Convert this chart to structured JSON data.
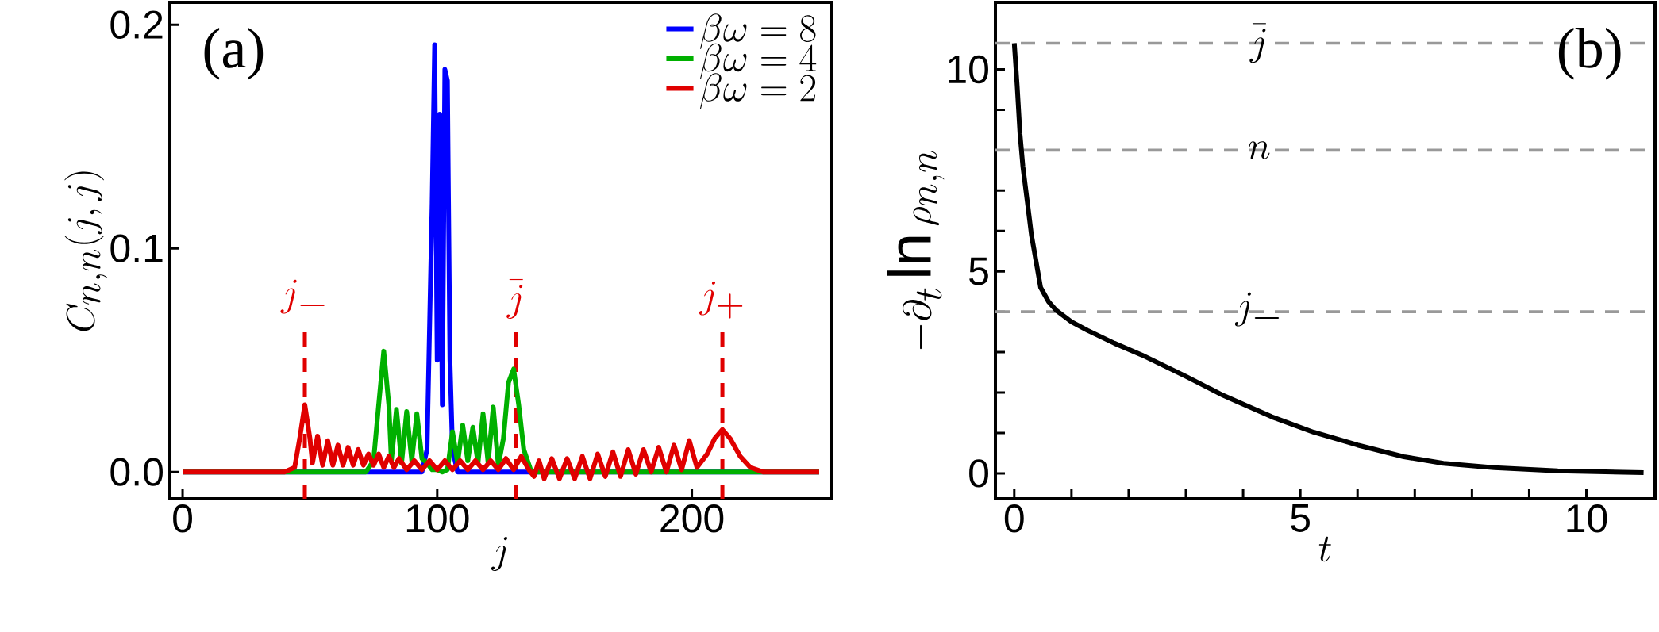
{
  "chart_data": [
    {
      "type": "line",
      "xlabel": "j",
      "ylabel": "C_{n,n}(j,j)",
      "xlim": [
        -5,
        255
      ],
      "ylim": [
        -0.012,
        0.21
      ],
      "xticks": [
        0,
        100,
        200
      ],
      "yticks": [
        {
          "value": 0,
          "label": "0.0"
        },
        {
          "value": 0.1,
          "label": "0.1"
        },
        {
          "value": 0.2,
          "label": "0.2"
        }
      ],
      "legend": "top right",
      "annotations": [
        "(a)"
      ],
      "ref_lines": [
        {
          "axis": "x",
          "value": 48,
          "label": "j_-",
          "color": "#e00000",
          "line_style": "dashed"
        },
        {
          "axis": "x",
          "value": 131,
          "label": "\\bar{j}",
          "color": "#e00000",
          "line_style": "dashed"
        },
        {
          "axis": "x",
          "value": 212,
          "label": "j_+",
          "color": "#e00000",
          "line_style": "dashed"
        }
      ],
      "series": [
        {
          "name": "\\beta\\omega = 8",
          "color": "#0000ff",
          "x": [
            0,
            94,
            96,
            98,
            99,
            100,
            101,
            102,
            103,
            104,
            105,
            106,
            108,
            250
          ],
          "values": [
            0,
            0,
            0.01,
            0.12,
            0.191,
            0.05,
            0.16,
            0.03,
            0.18,
            0.175,
            0.05,
            0.01,
            0,
            0
          ]
        },
        {
          "name": "\\beta\\omega = 4",
          "color": "#00b000",
          "x": [
            0,
            72,
            75,
            77,
            79,
            81,
            82,
            84,
            86,
            88,
            90,
            92,
            94,
            96,
            98,
            100,
            102,
            104,
            106,
            108,
            110,
            112,
            114,
            116,
            118,
            120,
            122,
            124,
            126,
            128,
            130,
            132,
            134,
            137,
            250
          ],
          "values": [
            0,
            0,
            0.005,
            0.03,
            0.054,
            0.03,
            0.005,
            0.028,
            0.004,
            0.027,
            0.005,
            0.026,
            0.006,
            0.004,
            0.001,
            0.001,
            0,
            0.001,
            0.018,
            0.004,
            0.021,
            0.005,
            0.02,
            0.004,
            0.026,
            0.004,
            0.029,
            0.003,
            0.015,
            0.04,
            0.046,
            0.03,
            0.01,
            0,
            0
          ]
        },
        {
          "name": "\\beta\\omega = 2",
          "color": "#e00000",
          "x": [
            0,
            40,
            44,
            46,
            48,
            50,
            51,
            53,
            55,
            57,
            59,
            61,
            63,
            65,
            67,
            69,
            71,
            73,
            75,
            77,
            79,
            81,
            83,
            85,
            88,
            91,
            94,
            97,
            100,
            103,
            106,
            109,
            112,
            115,
            118,
            121,
            124,
            127,
            130,
            133,
            136,
            138,
            140,
            142,
            145,
            148,
            151,
            154,
            157,
            160,
            163,
            166,
            169,
            172,
            175,
            178,
            181,
            184,
            187,
            190,
            193,
            196,
            199,
            202,
            206,
            209,
            212,
            215,
            219,
            223,
            228,
            250
          ],
          "values": [
            0,
            0,
            0.002,
            0.015,
            0.03,
            0.015,
            0.004,
            0.016,
            0.003,
            0.014,
            0.003,
            0.012,
            0.003,
            0.011,
            0.003,
            0.01,
            0.003,
            0.008,
            0.003,
            0.008,
            0.002,
            0.007,
            0.002,
            0.006,
            0.001,
            0.005,
            0.001,
            0.005,
            0.001,
            0.005,
            0.001,
            0.005,
            0.001,
            0.005,
            0.001,
            0.005,
            0.001,
            0.006,
            0.001,
            0.007,
            0.001,
            -0.002,
            0.005,
            -0.003,
            0.006,
            -0.003,
            0.006,
            -0.003,
            0.007,
            -0.003,
            0.008,
            -0.002,
            0.009,
            -0.002,
            0.01,
            -0.001,
            0.01,
            0,
            0.011,
            0,
            0.012,
            0.001,
            0.014,
            0.002,
            0.008,
            0.015,
            0.019,
            0.015,
            0.007,
            0.002,
            0,
            0
          ]
        }
      ]
    },
    {
      "type": "line",
      "xlabel": "t",
      "ylabel": "-\\partial_t \\ln \\rho_{n,n}",
      "xlim": [
        -0.33,
        11.2
      ],
      "ylim": [
        -0.63,
        11.66
      ],
      "xticks": [
        0,
        {
          "value": 1,
          "label": null
        },
        {
          "value": 2,
          "label": null
        },
        {
          "value": 3,
          "label": null
        },
        {
          "value": 4,
          "label": null
        },
        5,
        {
          "value": 6,
          "label": null
        },
        {
          "value": 7,
          "label": null
        },
        {
          "value": 8,
          "label": null
        },
        {
          "value": 9,
          "label": null
        },
        10
      ],
      "yticks": [
        0,
        {
          "value": 1,
          "label": null
        },
        {
          "value": 2,
          "label": null
        },
        {
          "value": 3,
          "label": null
        },
        {
          "value": 4,
          "label": null
        },
        5,
        {
          "value": 6,
          "label": null
        },
        {
          "value": 7,
          "label": null
        },
        {
          "value": 8,
          "label": null
        },
        {
          "value": 9,
          "label": null
        },
        10
      ],
      "annotations": [
        "(b)"
      ],
      "ref_lines": [
        {
          "axis": "y",
          "value": 10.65,
          "label": "\\bar{j}",
          "color": "#999999",
          "line_style": "dashed"
        },
        {
          "axis": "y",
          "value": 8,
          "label": "n",
          "color": "#999999",
          "line_style": "dashed"
        },
        {
          "axis": "y",
          "value": 4,
          "label": "j_-",
          "color": "#999999",
          "line_style": "dashed"
        }
      ],
      "series": [
        {
          "color": "#000000",
          "x": [
            0,
            0.05,
            0.1,
            0.15,
            0.23,
            0.3,
            0.35,
            0.46,
            0.6,
            0.73,
            1.0,
            1.28,
            1.75,
            2.23,
            3.0,
            3.65,
            4.5,
            5.23,
            6.0,
            6.81,
            7.5,
            8.39,
            9.5,
            11
          ],
          "values": [
            10.65,
            9.6,
            8.4,
            7.6,
            6.7,
            5.9,
            5.5,
            4.6,
            4.25,
            4.04,
            3.75,
            3.54,
            3.22,
            2.93,
            2.4,
            1.93,
            1.4,
            1.02,
            0.7,
            0.41,
            0.25,
            0.14,
            0.06,
            0.02
          ]
        }
      ]
    }
  ]
}
